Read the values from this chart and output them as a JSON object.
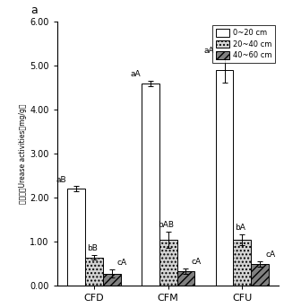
{
  "categories": [
    "CFD",
    "CFM",
    "CFU"
  ],
  "series_labels": [
    "0~20 cm",
    "20~40 cm",
    "40~60 cm"
  ],
  "values": [
    [
      2.2,
      4.6,
      4.9
    ],
    [
      0.65,
      1.05,
      1.05
    ],
    [
      0.28,
      0.33,
      0.5
    ]
  ],
  "errors": [
    [
      0.06,
      0.06,
      0.28
    ],
    [
      0.06,
      0.18,
      0.12
    ],
    [
      0.09,
      0.06,
      0.06
    ]
  ],
  "bar_labels": [
    [
      "aB",
      "aA",
      "aA"
    ],
    [
      "bB",
      "bAB",
      "bA"
    ],
    [
      "cA",
      "cA",
      "cA"
    ]
  ],
  "ylim": [
    0.0,
    6.0
  ],
  "yticks": [
    0.0,
    1.0,
    2.0,
    3.0,
    4.0,
    5.0,
    6.0
  ],
  "ytick_labels": [
    "0.00",
    "1.00",
    "2.00",
    "3.00",
    "4.00",
    "5.00",
    "6.00"
  ],
  "ylabel_chinese": "脿酶活性Urease activities（mg/g）",
  "corner_label": "a",
  "bar_colors": [
    "white",
    "white",
    "white"
  ],
  "bar_hatches": [
    "",
    "....",
    "////"
  ],
  "bar_edgecolors": [
    "black",
    "black",
    "black"
  ],
  "bar_width": 0.24,
  "legend_labels": [
    "0~20 cm",
    "20~40 cm",
    "40~60 cm"
  ],
  "figsize": [
    3.17,
    3.43
  ],
  "dpi": 100
}
